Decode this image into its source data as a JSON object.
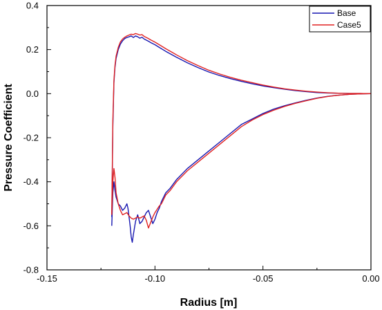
{
  "chart_data": {
    "type": "line",
    "xlabel": "Radius [m]",
    "ylabel": "Pressure Coefficient",
    "xlim": [
      -0.15,
      0.0
    ],
    "ylim": [
      -0.8,
      0.4
    ],
    "xticks": [
      -0.15,
      -0.1,
      -0.05,
      0.0
    ],
    "xtick_labels": [
      "-0.15",
      "-0.10",
      "-0.05",
      "0.00"
    ],
    "yticks": [
      -0.8,
      -0.6,
      -0.4,
      -0.2,
      0.0,
      0.2,
      0.4
    ],
    "ytick_labels": [
      "-0.8",
      "-0.6",
      "-0.4",
      "-0.2",
      "0.0",
      "0.2",
      "0.4"
    ],
    "grid": false,
    "legend_position": "top-right",
    "series": [
      {
        "name": "Base",
        "color": "#1515b0",
        "upper": [
          [
            -0.12,
            -0.56
          ],
          [
            -0.1198,
            -0.4
          ],
          [
            -0.1195,
            -0.15
          ],
          [
            -0.119,
            0.05
          ],
          [
            -0.1185,
            0.12
          ],
          [
            -0.118,
            0.16
          ],
          [
            -0.117,
            0.2
          ],
          [
            -0.116,
            0.225
          ],
          [
            -0.115,
            0.24
          ],
          [
            -0.114,
            0.25
          ],
          [
            -0.113,
            0.255
          ],
          [
            -0.112,
            0.258
          ],
          [
            -0.111,
            0.262
          ],
          [
            -0.11,
            0.255
          ],
          [
            -0.109,
            0.262
          ],
          [
            -0.108,
            0.258
          ],
          [
            -0.107,
            0.252
          ],
          [
            -0.106,
            0.256
          ],
          [
            -0.105,
            0.248
          ],
          [
            -0.104,
            0.243
          ],
          [
            -0.103,
            0.238
          ],
          [
            -0.102,
            0.232
          ],
          [
            -0.1,
            0.222
          ],
          [
            -0.098,
            0.21
          ],
          [
            -0.095,
            0.192
          ],
          [
            -0.09,
            0.165
          ],
          [
            -0.085,
            0.14
          ],
          [
            -0.08,
            0.118
          ],
          [
            -0.075,
            0.098
          ],
          [
            -0.07,
            0.082
          ],
          [
            -0.065,
            0.068
          ],
          [
            -0.06,
            0.056
          ],
          [
            -0.055,
            0.045
          ],
          [
            -0.05,
            0.035
          ],
          [
            -0.045,
            0.027
          ],
          [
            -0.04,
            0.02
          ],
          [
            -0.035,
            0.014
          ],
          [
            -0.03,
            0.009
          ],
          [
            -0.025,
            0.005
          ],
          [
            -0.02,
            0.003
          ],
          [
            -0.015,
            0.002
          ],
          [
            -0.01,
            0.001
          ],
          [
            -0.005,
            0.001
          ],
          [
            -0.002,
            0.0
          ],
          [
            0.0,
            0.0
          ]
        ],
        "lower": [
          [
            -0.12,
            -0.6
          ],
          [
            -0.1195,
            -0.45
          ],
          [
            -0.119,
            -0.4
          ],
          [
            -0.1185,
            -0.44
          ],
          [
            -0.118,
            -0.47
          ],
          [
            -0.117,
            -0.5
          ],
          [
            -0.116,
            -0.51
          ],
          [
            -0.115,
            -0.53
          ],
          [
            -0.114,
            -0.52
          ],
          [
            -0.113,
            -0.5
          ],
          [
            -0.1125,
            -0.52
          ],
          [
            -0.112,
            -0.56
          ],
          [
            -0.1115,
            -0.6
          ],
          [
            -0.111,
            -0.65
          ],
          [
            -0.1105,
            -0.675
          ],
          [
            -0.11,
            -0.64
          ],
          [
            -0.109,
            -0.58
          ],
          [
            -0.108,
            -0.55
          ],
          [
            -0.1075,
            -0.57
          ],
          [
            -0.107,
            -0.59
          ],
          [
            -0.106,
            -0.58
          ],
          [
            -0.105,
            -0.56
          ],
          [
            -0.104,
            -0.54
          ],
          [
            -0.103,
            -0.53
          ],
          [
            -0.102,
            -0.56
          ],
          [
            -0.101,
            -0.59
          ],
          [
            -0.1,
            -0.57
          ],
          [
            -0.099,
            -0.54
          ],
          [
            -0.098,
            -0.52
          ],
          [
            -0.097,
            -0.49
          ],
          [
            -0.096,
            -0.47
          ],
          [
            -0.095,
            -0.45
          ],
          [
            -0.093,
            -0.43
          ],
          [
            -0.09,
            -0.39
          ],
          [
            -0.087,
            -0.36
          ],
          [
            -0.085,
            -0.34
          ],
          [
            -0.08,
            -0.3
          ],
          [
            -0.075,
            -0.26
          ],
          [
            -0.07,
            -0.22
          ],
          [
            -0.065,
            -0.18
          ],
          [
            -0.06,
            -0.14
          ],
          [
            -0.055,
            -0.115
          ],
          [
            -0.05,
            -0.09
          ],
          [
            -0.045,
            -0.07
          ],
          [
            -0.04,
            -0.055
          ],
          [
            -0.035,
            -0.042
          ],
          [
            -0.03,
            -0.03
          ],
          [
            -0.025,
            -0.02
          ],
          [
            -0.02,
            -0.012
          ],
          [
            -0.015,
            -0.007
          ],
          [
            -0.01,
            -0.003
          ],
          [
            -0.005,
            -0.001
          ],
          [
            0.0,
            0.0
          ]
        ]
      },
      {
        "name": "Case5",
        "color": "#e02020",
        "upper": [
          [
            -0.12,
            -0.55
          ],
          [
            -0.1198,
            -0.38
          ],
          [
            -0.1195,
            -0.12
          ],
          [
            -0.119,
            0.06
          ],
          [
            -0.1185,
            0.13
          ],
          [
            -0.118,
            0.17
          ],
          [
            -0.117,
            0.21
          ],
          [
            -0.116,
            0.235
          ],
          [
            -0.115,
            0.248
          ],
          [
            -0.114,
            0.256
          ],
          [
            -0.113,
            0.262
          ],
          [
            -0.112,
            0.266
          ],
          [
            -0.111,
            0.27
          ],
          [
            -0.11,
            0.268
          ],
          [
            -0.109,
            0.273
          ],
          [
            -0.108,
            0.27
          ],
          [
            -0.107,
            0.266
          ],
          [
            -0.106,
            0.268
          ],
          [
            -0.105,
            0.26
          ],
          [
            -0.104,
            0.255
          ],
          [
            -0.103,
            0.25
          ],
          [
            -0.102,
            0.244
          ],
          [
            -0.1,
            0.234
          ],
          [
            -0.098,
            0.222
          ],
          [
            -0.095,
            0.204
          ],
          [
            -0.09,
            0.176
          ],
          [
            -0.085,
            0.15
          ],
          [
            -0.08,
            0.127
          ],
          [
            -0.075,
            0.106
          ],
          [
            -0.07,
            0.089
          ],
          [
            -0.065,
            0.074
          ],
          [
            -0.06,
            0.061
          ],
          [
            -0.055,
            0.05
          ],
          [
            -0.05,
            0.039
          ],
          [
            -0.045,
            0.03
          ],
          [
            -0.04,
            0.022
          ],
          [
            -0.035,
            0.016
          ],
          [
            -0.03,
            0.011
          ],
          [
            -0.025,
            0.007
          ],
          [
            -0.02,
            0.004
          ],
          [
            -0.015,
            0.002
          ],
          [
            -0.01,
            0.001
          ],
          [
            -0.005,
            0.001
          ],
          [
            -0.002,
            0.0
          ],
          [
            0.0,
            0.0
          ]
        ],
        "lower": [
          [
            -0.12,
            -0.55
          ],
          [
            -0.1195,
            -0.4
          ],
          [
            -0.119,
            -0.34
          ],
          [
            -0.1185,
            -0.38
          ],
          [
            -0.118,
            -0.45
          ],
          [
            -0.117,
            -0.5
          ],
          [
            -0.116,
            -0.53
          ],
          [
            -0.115,
            -0.55
          ],
          [
            -0.114,
            -0.545
          ],
          [
            -0.113,
            -0.54
          ],
          [
            -0.112,
            -0.555
          ],
          [
            -0.111,
            -0.565
          ],
          [
            -0.11,
            -0.57
          ],
          [
            -0.109,
            -0.565
          ],
          [
            -0.108,
            -0.56
          ],
          [
            -0.107,
            -0.565
          ],
          [
            -0.106,
            -0.56
          ],
          [
            -0.105,
            -0.555
          ],
          [
            -0.104,
            -0.575
          ],
          [
            -0.103,
            -0.61
          ],
          [
            -0.102,
            -0.585
          ],
          [
            -0.101,
            -0.56
          ],
          [
            -0.1,
            -0.54
          ],
          [
            -0.099,
            -0.525
          ],
          [
            -0.098,
            -0.51
          ],
          [
            -0.097,
            -0.5
          ],
          [
            -0.096,
            -0.48
          ],
          [
            -0.095,
            -0.46
          ],
          [
            -0.093,
            -0.44
          ],
          [
            -0.09,
            -0.4
          ],
          [
            -0.087,
            -0.37
          ],
          [
            -0.085,
            -0.35
          ],
          [
            -0.08,
            -0.31
          ],
          [
            -0.075,
            -0.27
          ],
          [
            -0.07,
            -0.23
          ],
          [
            -0.065,
            -0.19
          ],
          [
            -0.06,
            -0.15
          ],
          [
            -0.055,
            -0.12
          ],
          [
            -0.05,
            -0.095
          ],
          [
            -0.045,
            -0.075
          ],
          [
            -0.04,
            -0.058
          ],
          [
            -0.035,
            -0.044
          ],
          [
            -0.03,
            -0.032
          ],
          [
            -0.025,
            -0.021
          ],
          [
            -0.02,
            -0.013
          ],
          [
            -0.015,
            -0.007
          ],
          [
            -0.01,
            -0.003
          ],
          [
            -0.005,
            -0.001
          ],
          [
            0.0,
            0.0
          ]
        ]
      }
    ]
  }
}
